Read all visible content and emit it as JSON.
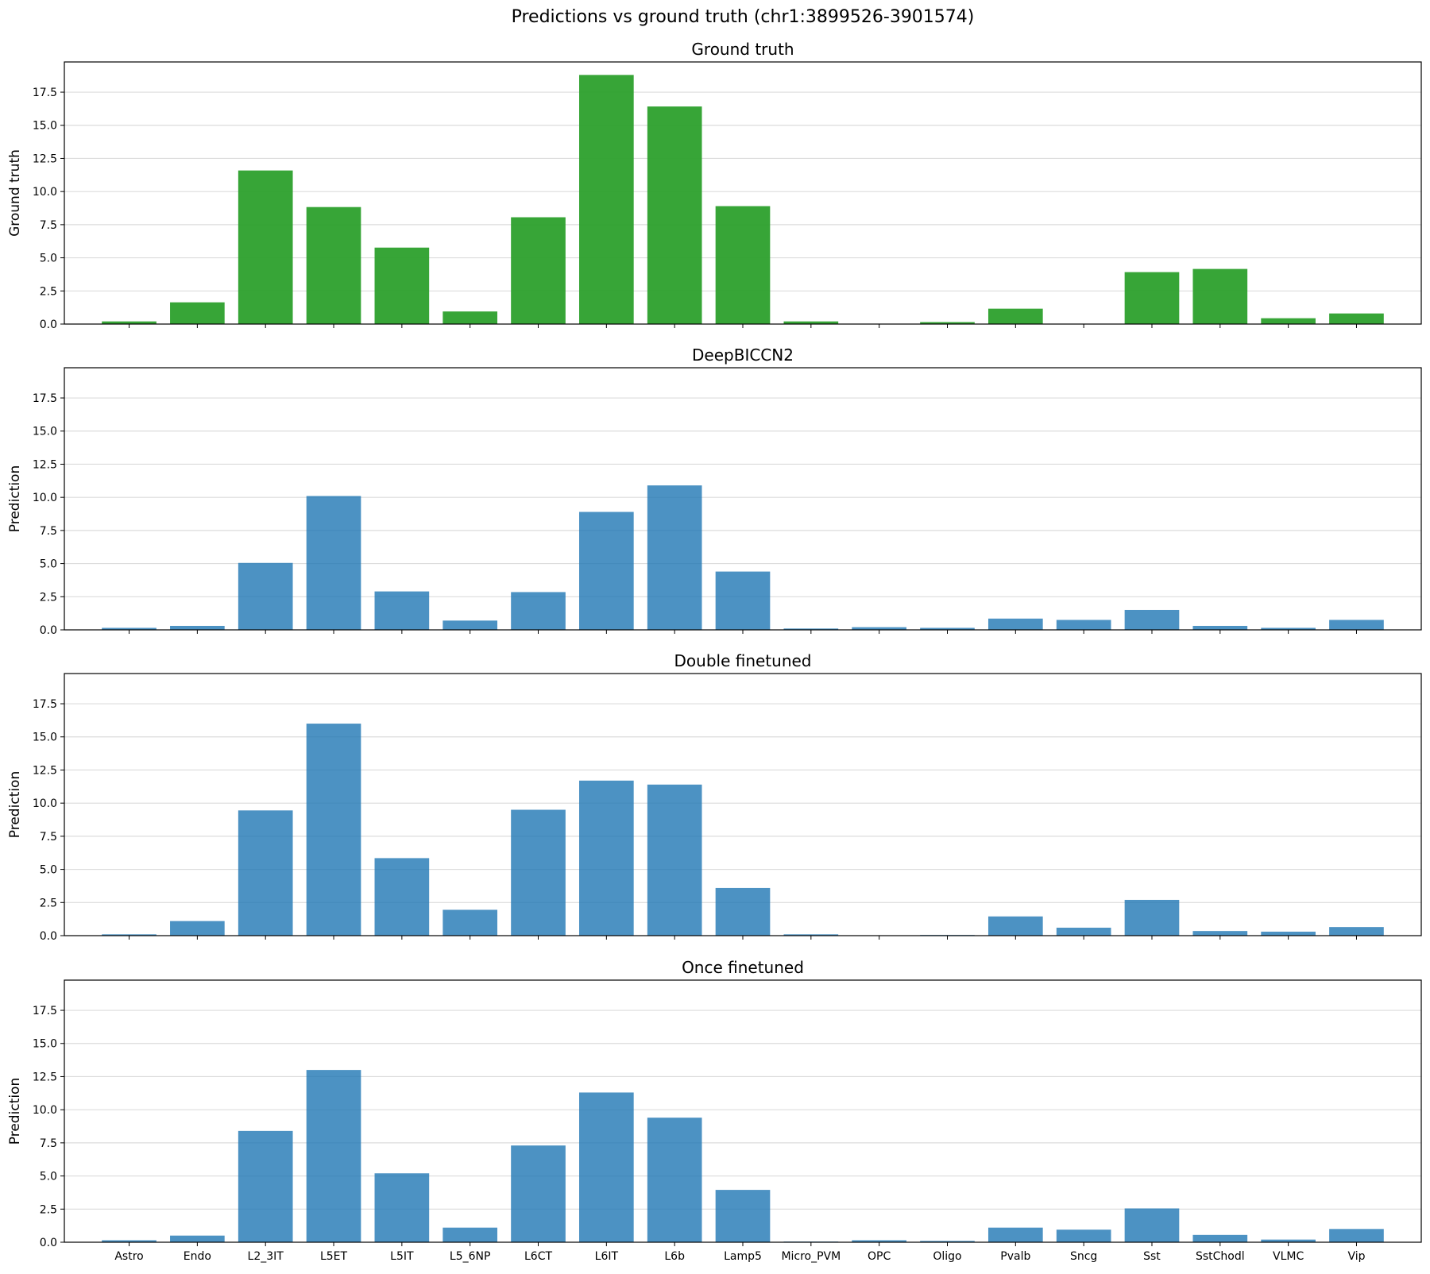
{
  "chart_data": {
    "suptitle": "Predictions vs ground truth (chr1:3899526-3901574)",
    "type": "bar",
    "categories": [
      "Astro",
      "Endo",
      "L2_3IT",
      "L5ET",
      "L5IT",
      "L5_6NP",
      "L6CT",
      "L6IT",
      "L6b",
      "Lamp5",
      "Micro_PVM",
      "OPC",
      "Oligo",
      "Pvalb",
      "Sncg",
      "Sst",
      "SstChodl",
      "VLMC",
      "Vip"
    ],
    "ylim": [
      0,
      19.78
    ],
    "yticks": [
      "0.0",
      "2.5",
      "5.0",
      "7.5",
      "10.0",
      "12.5",
      "15.0",
      "17.5"
    ],
    "grid": "horizontal",
    "shared_x": true,
    "panels": [
      {
        "title": "Ground truth",
        "ylabel": "Ground truth",
        "color": "#2ca02c",
        "values": [
          0.2,
          1.64,
          11.59,
          8.83,
          5.77,
          0.95,
          8.06,
          18.8,
          16.42,
          8.9,
          0.2,
          0.0,
          0.15,
          1.16,
          0.0,
          3.92,
          4.16,
          0.44,
          0.8
        ]
      },
      {
        "title": "DeepBICCN2",
        "ylabel": "Prediction",
        "color": "#1f77b4",
        "values": [
          0.15,
          0.3,
          5.05,
          10.1,
          2.9,
          0.7,
          2.85,
          8.9,
          10.9,
          4.4,
          0.1,
          0.2,
          0.15,
          0.85,
          0.75,
          1.5,
          0.3,
          0.15,
          0.75
        ]
      },
      {
        "title": "Double finetuned",
        "ylabel": "Prediction",
        "color": "#1f77b4",
        "values": [
          0.1,
          1.1,
          9.45,
          16.0,
          5.85,
          1.95,
          9.5,
          11.7,
          11.4,
          3.6,
          0.1,
          0.0,
          0.05,
          1.45,
          0.6,
          2.7,
          0.35,
          0.3,
          0.65
        ]
      },
      {
        "title": "Once finetuned",
        "ylabel": "Prediction",
        "color": "#1f77b4",
        "values": [
          0.15,
          0.5,
          8.4,
          13.0,
          5.2,
          1.1,
          7.3,
          11.3,
          9.4,
          3.95,
          0.05,
          0.15,
          0.1,
          1.1,
          0.95,
          2.55,
          0.55,
          0.2,
          1.0
        ]
      }
    ]
  }
}
